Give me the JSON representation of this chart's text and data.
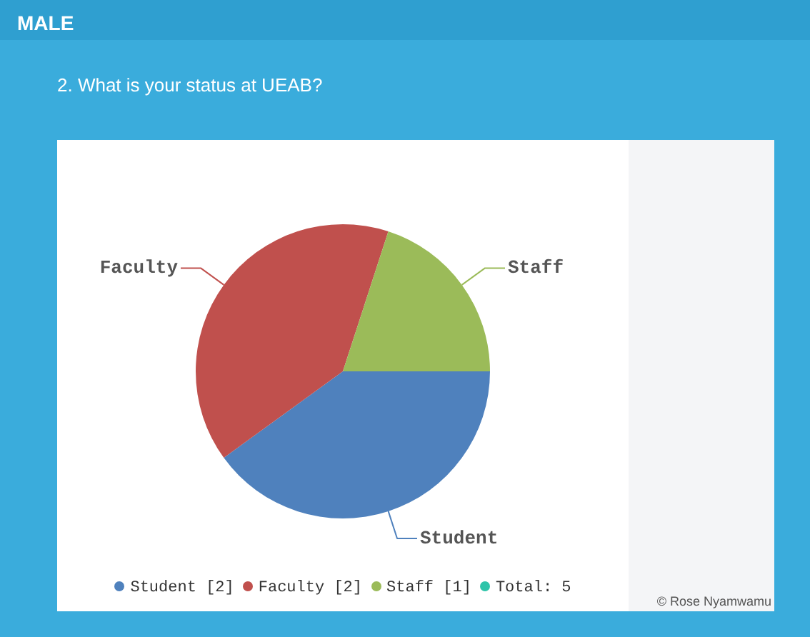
{
  "chart_data": {
    "type": "pie",
    "title": "MALE",
    "subtitle": "2. What is your status at UEAB?",
    "categories": [
      "Student",
      "Faculty",
      "Staff"
    ],
    "values": [
      2,
      2,
      1
    ],
    "value_labels": [
      "[2]",
      "[2]",
      "[1]"
    ],
    "colors": [
      "#4f81bd",
      "#c0504d",
      "#9bbb59"
    ],
    "legend": "bottom",
    "annotations": [
      "Total: 5",
      "© Rose Nyamwamu"
    ]
  }
}
